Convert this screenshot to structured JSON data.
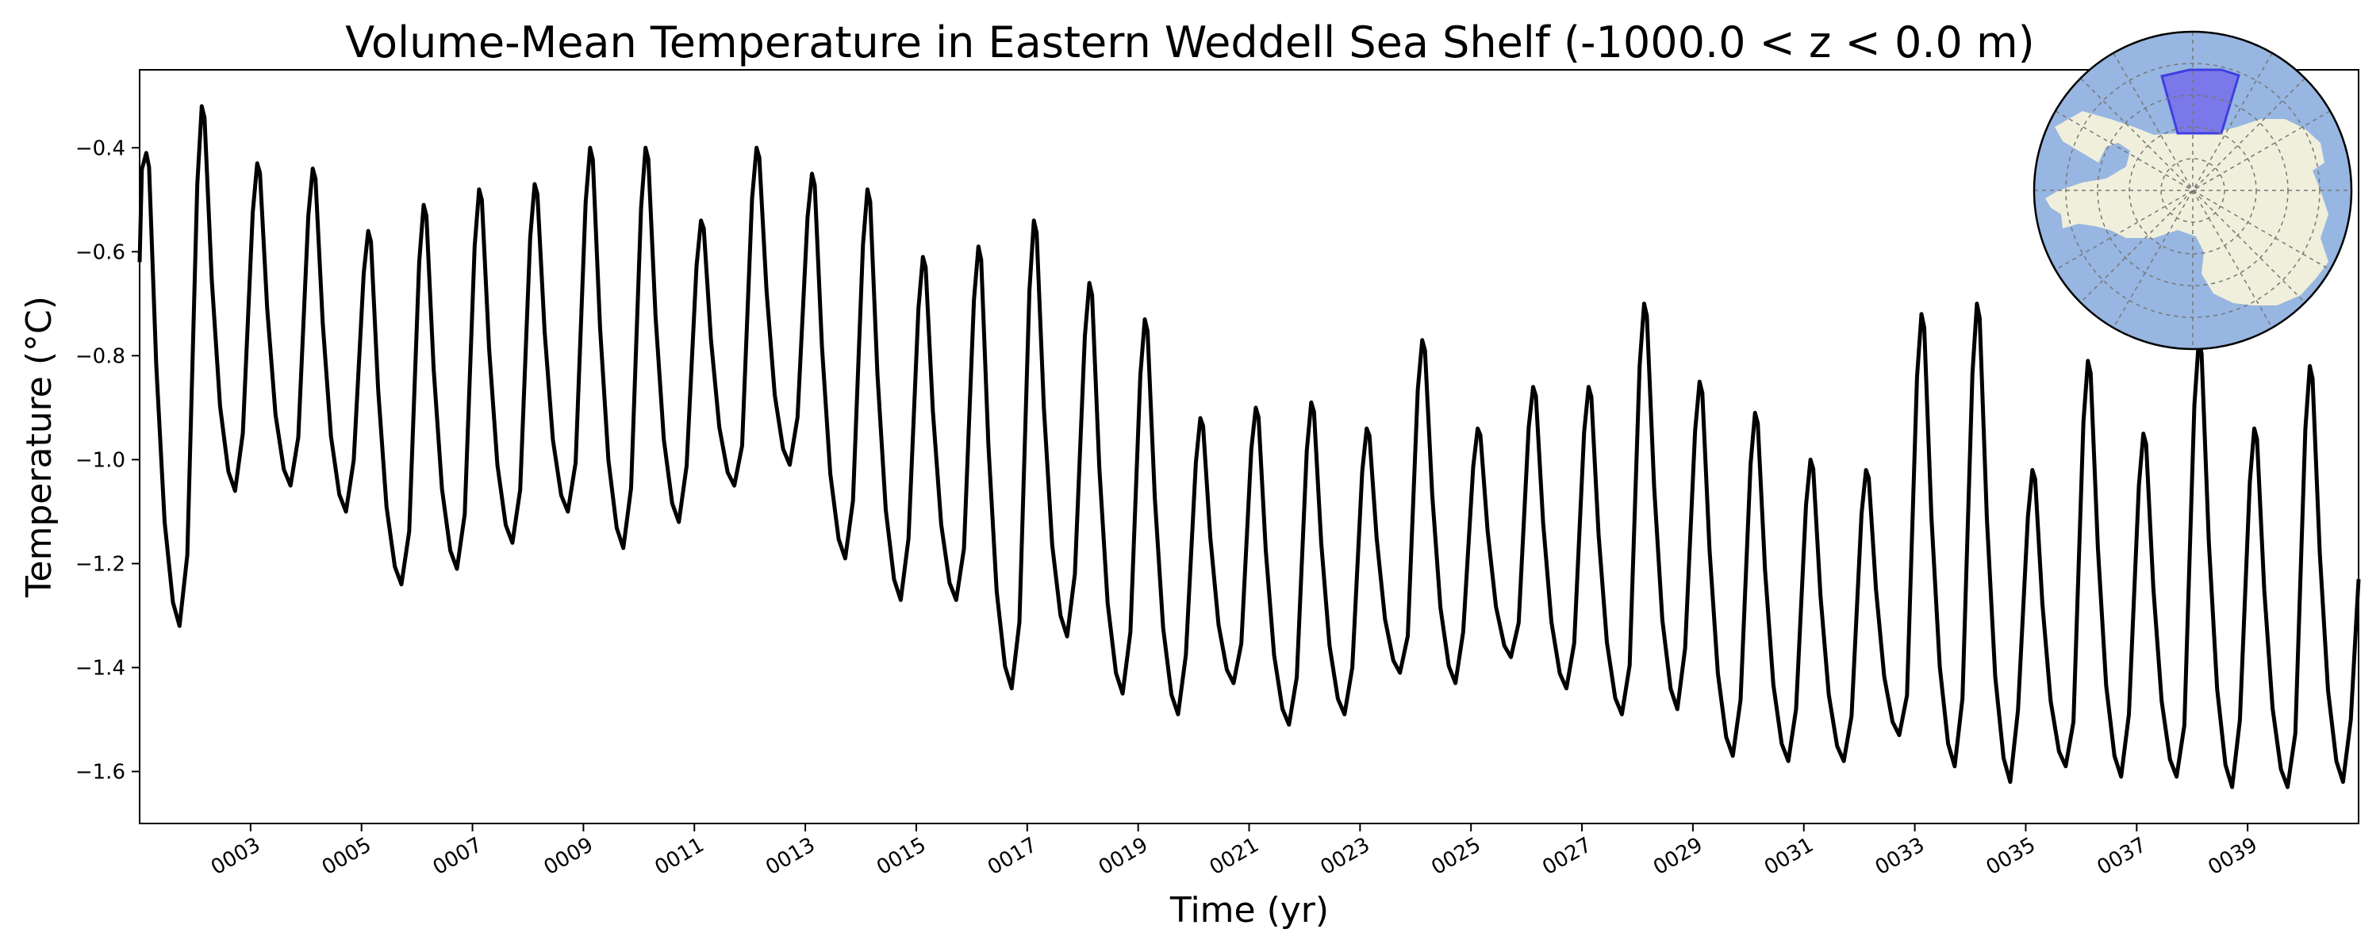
{
  "chart_data": {
    "type": "line",
    "title": "Volume-Mean Temperature in Eastern Weddell Sea Shelf (-1000.0 < z < 0.0 m)",
    "xlabel": "Time (yr)",
    "ylabel": "Temperature (°C)",
    "xlim": [
      1.0,
      41.0
    ],
    "ylim": [
      -1.7,
      -0.25
    ],
    "x_ticks": [
      3,
      5,
      7,
      9,
      11,
      13,
      15,
      17,
      19,
      21,
      23,
      25,
      27,
      29,
      31,
      33,
      35,
      37,
      39
    ],
    "x_tick_labels": [
      "0003",
      "0005",
      "0007",
      "0009",
      "0011",
      "0013",
      "0015",
      "0017",
      "0019",
      "0021",
      "0023",
      "0025",
      "0027",
      "0029",
      "0031",
      "0033",
      "0035",
      "0037",
      "0039"
    ],
    "y_ticks": [
      -1.6,
      -1.4,
      -1.2,
      -1.0,
      -0.8,
      -0.6,
      -0.4
    ],
    "y_tick_labels": [
      "−1.6",
      "−1.4",
      "−1.2",
      "−1.0",
      "−0.8",
      "−0.6",
      "−0.4"
    ],
    "grid": false,
    "legend": "none",
    "line_color": "#000000",
    "series": [
      {
        "annual_cycles": [
          {
            "year": 1,
            "start": -0.62,
            "peak": -0.41,
            "trough": -1.32
          },
          {
            "year": 2,
            "peak": -0.32,
            "trough": -1.06
          },
          {
            "year": 3,
            "peak": -0.43,
            "trough": -1.05
          },
          {
            "year": 4,
            "peak": -0.44,
            "trough": -1.1
          },
          {
            "year": 5,
            "peak": -0.56,
            "trough": -1.24
          },
          {
            "year": 6,
            "peak": -0.51,
            "trough": -1.21
          },
          {
            "year": 7,
            "peak": -0.48,
            "trough": -1.16
          },
          {
            "year": 8,
            "peak": -0.47,
            "trough": -1.1
          },
          {
            "year": 9,
            "peak": -0.4,
            "trough": -1.17
          },
          {
            "year": 10,
            "peak": -0.4,
            "trough": -1.12
          },
          {
            "year": 11,
            "peak": -0.54,
            "trough": -1.05
          },
          {
            "year": 12,
            "peak": -0.4,
            "trough": -1.01
          },
          {
            "year": 13,
            "peak": -0.45,
            "trough": -1.19
          },
          {
            "year": 14,
            "peak": -0.48,
            "trough": -1.27
          },
          {
            "year": 15,
            "peak": -0.61,
            "trough": -1.27
          },
          {
            "year": 16,
            "peak": -0.59,
            "trough": -1.44
          },
          {
            "year": 17,
            "peak": -0.54,
            "trough": -1.34
          },
          {
            "year": 18,
            "peak": -0.66,
            "trough": -1.45
          },
          {
            "year": 19,
            "peak": -0.73,
            "trough": -1.49
          },
          {
            "year": 20,
            "peak": -0.92,
            "trough": -1.43
          },
          {
            "year": 21,
            "peak": -0.9,
            "trough": -1.51
          },
          {
            "year": 22,
            "peak": -0.89,
            "trough": -1.49
          },
          {
            "year": 23,
            "peak": -0.94,
            "trough": -1.41
          },
          {
            "year": 24,
            "peak": -0.77,
            "trough": -1.43
          },
          {
            "year": 25,
            "peak": -0.94,
            "trough": -1.38
          },
          {
            "year": 26,
            "peak": -0.86,
            "trough": -1.44
          },
          {
            "year": 27,
            "peak": -0.86,
            "trough": -1.49
          },
          {
            "year": 28,
            "peak": -0.7,
            "trough": -1.48
          },
          {
            "year": 29,
            "peak": -0.85,
            "trough": -1.57
          },
          {
            "year": 30,
            "peak": -0.91,
            "trough": -1.58
          },
          {
            "year": 31,
            "peak": -1.0,
            "trough": -1.58
          },
          {
            "year": 32,
            "peak": -1.02,
            "trough": -1.53
          },
          {
            "year": 33,
            "peak": -0.72,
            "trough": -1.59
          },
          {
            "year": 34,
            "peak": -0.7,
            "trough": -1.62
          },
          {
            "year": 35,
            "peak": -1.02,
            "trough": -1.59
          },
          {
            "year": 36,
            "peak": -0.81,
            "trough": -1.61
          },
          {
            "year": 37,
            "peak": -0.95,
            "trough": -1.61
          },
          {
            "year": 38,
            "peak": -0.77,
            "trough": -1.63
          },
          {
            "year": 39,
            "peak": -0.94,
            "trough": -1.63
          },
          {
            "year": 40,
            "peak": -0.82,
            "trough": -1.62,
            "end": -1.23
          }
        ]
      }
    ]
  },
  "inset_map": {
    "projection": "south-polar-stereographic",
    "ocean_color": "#97b6e1",
    "land_color": "#efefdb",
    "region_fill": "#7b78ea",
    "region_edge": "#3f3fe0"
  }
}
